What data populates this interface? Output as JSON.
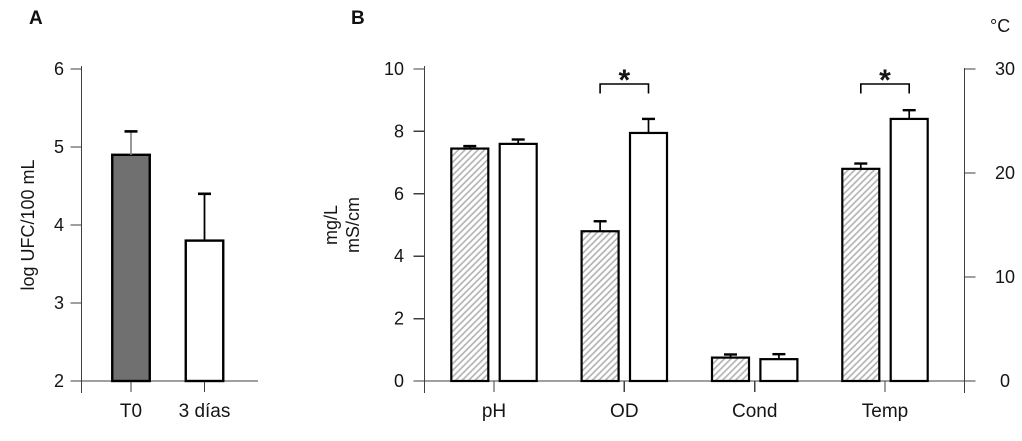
{
  "figure": {
    "background": "#ffffff",
    "description_labels": [
      "A",
      "B"
    ]
  },
  "colors": {
    "bar_gray": "#707070",
    "bar_white": "#ffffff",
    "hatch_stripe": "#b5b5b5",
    "axis": "#3f3f3f",
    "bar_stroke": "#000000",
    "text": "#151515",
    "gray_error_stem": "#8c8c8c"
  },
  "chart_data": [
    {
      "panel_label": "A",
      "type": "bar",
      "ylabel": "log UFC/100 mL",
      "ylim": [
        2,
        6
      ],
      "yticks": [
        2,
        3,
        4,
        5,
        6
      ],
      "categories": [
        "T0",
        "3 días"
      ],
      "values": [
        4.9,
        3.8
      ],
      "errors": [
        0.3,
        0.6
      ],
      "bar_fill_styles": [
        "gray",
        "white"
      ],
      "grid": false
    },
    {
      "panel_label": "B",
      "type": "grouped-bar",
      "ylabel_left_lines": [
        "mg/L",
        "mS/cm"
      ],
      "ylabel_right": "°C",
      "ylim_left": [
        0,
        10
      ],
      "yticks_left": [
        0,
        2,
        4,
        6,
        8,
        10
      ],
      "ylim_right": [
        0,
        30
      ],
      "yticks_right": [
        0,
        10,
        20,
        30
      ],
      "categories": [
        "pH",
        "OD",
        "Cond",
        "Temp"
      ],
      "series": [
        {
          "name": "hatched-bars",
          "style": "hatched",
          "values": [
            7.45,
            4.8,
            0.75,
            6.8
          ],
          "errors": [
            0.08,
            0.32,
            0.1,
            0.17
          ]
        },
        {
          "name": "white-bars",
          "style": "white",
          "values": [
            7.6,
            7.95,
            0.7,
            8.4
          ],
          "errors": [
            0.14,
            0.45,
            0.16,
            0.28
          ]
        }
      ],
      "temp_values_celsius": {
        "hatched": 20.4,
        "white": 25.2
      },
      "significance_markers": [
        {
          "category": "OD",
          "label": "*"
        },
        {
          "category": "Temp",
          "label": "*"
        }
      ],
      "grid": false,
      "legend": "none"
    }
  ]
}
